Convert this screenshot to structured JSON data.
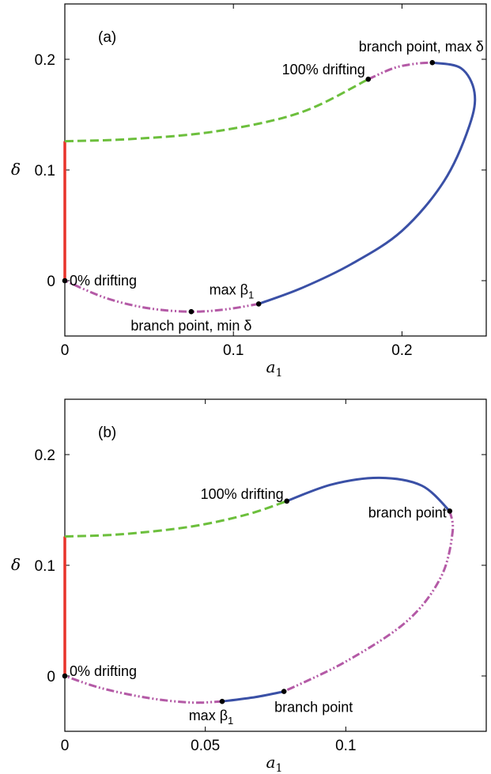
{
  "chart_data": [
    {
      "type": "line",
      "panel_label": "(a)",
      "xlabel": "a",
      "xlabel_sub": "1",
      "ylabel": "δ",
      "xlim": [
        0,
        0.25
      ],
      "ylim": [
        -0.05,
        0.25
      ],
      "xticks": [
        0,
        0.1,
        0.2
      ],
      "xtick_labels": [
        "0",
        "0.1",
        "0.2"
      ],
      "yticks": [
        0,
        0.1,
        0.2
      ],
      "ytick_labels": [
        "0",
        "0.1",
        "0.2"
      ],
      "segments": [
        {
          "style": "red-solid",
          "points": [
            [
              0.0,
              0.0
            ],
            [
              0.0,
              0.126
            ]
          ]
        },
        {
          "style": "green-dashed",
          "points": [
            [
              0.0,
              0.126
            ],
            [
              0.04,
              0.128
            ],
            [
              0.09,
              0.135
            ],
            [
              0.14,
              0.152
            ],
            [
              0.18,
              0.182
            ]
          ]
        },
        {
          "style": "magenta-dashdot",
          "points": [
            [
              0.18,
              0.182
            ],
            [
              0.195,
              0.192
            ],
            [
              0.208,
              0.196
            ],
            [
              0.218,
              0.197
            ]
          ]
        },
        {
          "style": "blue-solid",
          "points": [
            [
              0.218,
              0.197
            ],
            [
              0.235,
              0.192
            ],
            [
              0.243,
              0.17
            ],
            [
              0.24,
              0.14
            ],
            [
              0.225,
              0.09
            ],
            [
              0.2,
              0.045
            ],
            [
              0.17,
              0.015
            ],
            [
              0.14,
              -0.007
            ],
            [
              0.115,
              -0.021
            ]
          ]
        },
        {
          "style": "magenta-dashdot",
          "points": [
            [
              0.115,
              -0.021
            ],
            [
              0.095,
              -0.026
            ],
            [
              0.075,
              -0.028
            ],
            [
              0.05,
              -0.025
            ],
            [
              0.025,
              -0.016
            ],
            [
              0.0,
              0.0
            ]
          ]
        }
      ],
      "points": [
        {
          "x": 0.0,
          "y": 0.0,
          "label": "0% drifting",
          "anchor": "start",
          "dx": 6,
          "dy": 6
        },
        {
          "x": 0.075,
          "y": -0.028,
          "label": "branch point, min δ",
          "anchor": "middle",
          "dx": 0,
          "dy": 24
        },
        {
          "x": 0.115,
          "y": -0.021,
          "label": "max β",
          "sub": "1",
          "anchor": "end",
          "dx": -6,
          "dy": -12
        },
        {
          "x": 0.18,
          "y": 0.182,
          "label": "100% drifting",
          "anchor": "end",
          "dx": -4,
          "dy": -6
        },
        {
          "x": 0.218,
          "y": 0.197,
          "label": "branch point, max δ",
          "anchor": "middle",
          "dx": -14,
          "dy": -14
        }
      ]
    },
    {
      "type": "line",
      "panel_label": "(b)",
      "xlabel": "a",
      "xlabel_sub": "1",
      "ylabel": "δ",
      "xlim": [
        0,
        0.15
      ],
      "ylim": [
        -0.05,
        0.25
      ],
      "xticks": [
        0,
        0.05,
        0.1
      ],
      "xtick_labels": [
        "0",
        "0.05",
        "0.1"
      ],
      "yticks": [
        0,
        0.1,
        0.2
      ],
      "ytick_labels": [
        "0",
        "0.1",
        "0.2"
      ],
      "segments": [
        {
          "style": "red-solid",
          "points": [
            [
              0.0,
              0.0
            ],
            [
              0.0,
              0.126
            ]
          ]
        },
        {
          "style": "green-dashed",
          "points": [
            [
              0.0,
              0.126
            ],
            [
              0.02,
              0.128
            ],
            [
              0.045,
              0.135
            ],
            [
              0.065,
              0.146
            ],
            [
              0.079,
              0.158
            ]
          ]
        },
        {
          "style": "blue-solid",
          "points": [
            [
              0.079,
              0.158
            ],
            [
              0.095,
              0.173
            ],
            [
              0.112,
              0.179
            ],
            [
              0.127,
              0.172
            ],
            [
              0.137,
              0.149
            ]
          ]
        },
        {
          "style": "magenta-dashdot",
          "points": [
            [
              0.137,
              0.149
            ],
            [
              0.138,
              0.13
            ],
            [
              0.134,
              0.09
            ],
            [
              0.122,
              0.05
            ],
            [
              0.1,
              0.013
            ],
            [
              0.078,
              -0.014
            ]
          ]
        },
        {
          "style": "blue-solid",
          "points": [
            [
              0.078,
              -0.014
            ],
            [
              0.068,
              -0.019
            ],
            [
              0.056,
              -0.023
            ]
          ]
        },
        {
          "style": "magenta-dashdot",
          "points": [
            [
              0.056,
              -0.023
            ],
            [
              0.045,
              -0.024
            ],
            [
              0.03,
              -0.02
            ],
            [
              0.013,
              -0.011
            ],
            [
              0.0,
              0.0
            ]
          ]
        }
      ],
      "points": [
        {
          "x": 0.0,
          "y": 0.0,
          "label": "0% drifting",
          "anchor": "start",
          "dx": 6,
          "dy": 0
        },
        {
          "x": 0.056,
          "y": -0.023,
          "label": "max β",
          "sub": "1",
          "anchor": "middle",
          "dx": -14,
          "dy": 24
        },
        {
          "x": 0.078,
          "y": -0.014,
          "label": "branch point",
          "anchor": "start",
          "dx": -12,
          "dy": 26
        },
        {
          "x": 0.079,
          "y": 0.158,
          "label": "100% drifting",
          "anchor": "end",
          "dx": -4,
          "dy": -3
        },
        {
          "x": 0.137,
          "y": 0.149,
          "label": "branch point",
          "anchor": "end",
          "dx": -4,
          "dy": 8
        }
      ]
    }
  ]
}
